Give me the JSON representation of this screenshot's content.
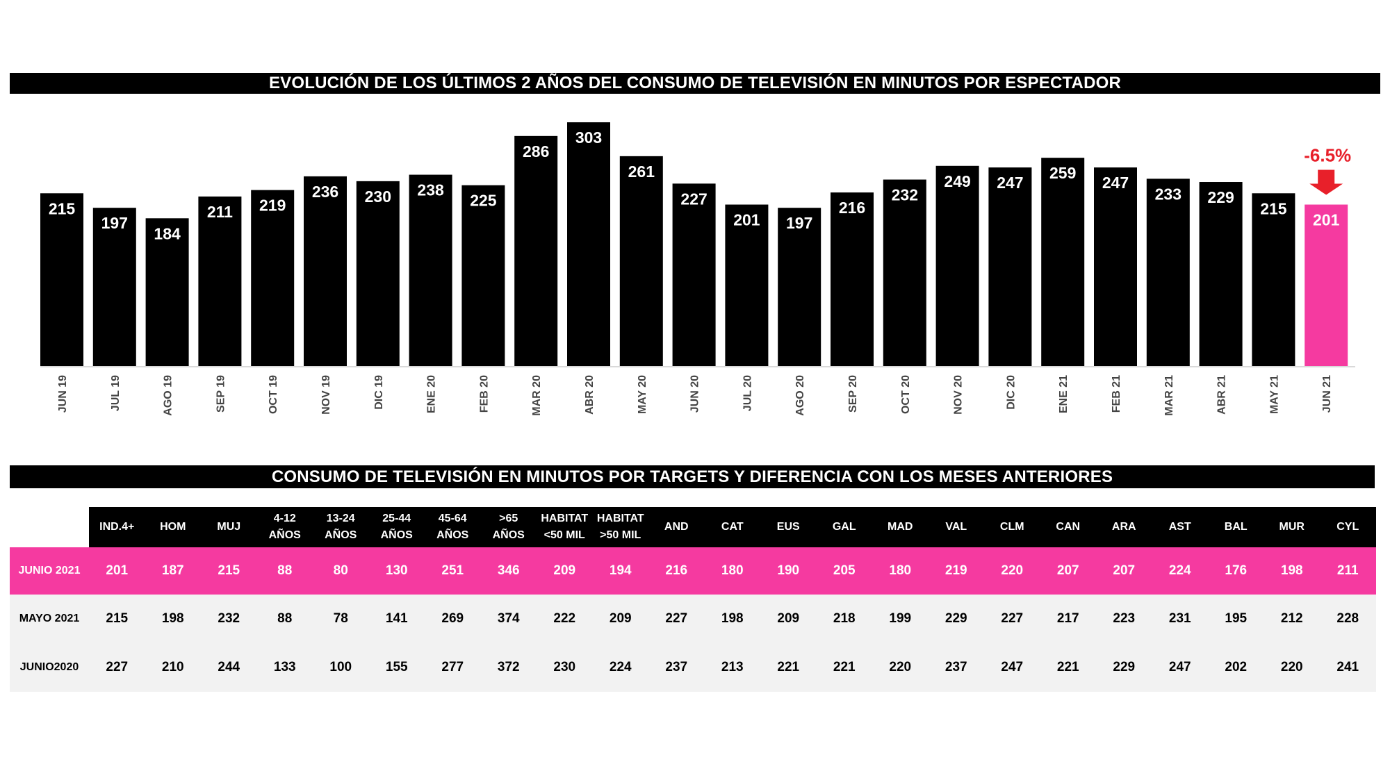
{
  "title": "EVOLUCIÓN DE LOS ÚLTIMOS 2 AÑOS DEL CONSUMO DE TELEVISIÓN EN MINUTOS POR ESPECTADOR",
  "colors": {
    "bar": "#000000",
    "highlight": "#f53aa0",
    "delta": "#e8202a",
    "table_header": "#000000",
    "table_current_row": "#f53aa0"
  },
  "chart_data": {
    "type": "bar",
    "title": "EVOLUCIÓN DE LOS ÚLTIMOS 2 AÑOS DEL CONSUMO DE TELEVISIÓN EN MINUTOS POR ESPECTADOR",
    "xlabel": "",
    "ylabel": "",
    "ylim": [
      0,
      310
    ],
    "grid": false,
    "categories": [
      "JUN 19",
      "JUL 19",
      "AGO 19",
      "SEP 19",
      "OCT 19",
      "NOV 19",
      "DIC 19",
      "ENE 20",
      "FEB 20",
      "MAR 20",
      "ABR 20",
      "MAY 20",
      "JUN 20",
      "JUL 20",
      "AGO 20",
      "SEP 20",
      "OCT 20",
      "NOV 20",
      "DIC 20",
      "ENE 21",
      "FEB 21",
      "MAR 21",
      "ABR 21",
      "MAY 21",
      "JUN 21"
    ],
    "values": [
      215,
      197,
      184,
      211,
      219,
      236,
      230,
      238,
      225,
      286,
      303,
      261,
      227,
      201,
      197,
      216,
      232,
      249,
      247,
      259,
      247,
      233,
      229,
      215,
      201
    ],
    "highlight_index": 24,
    "annotation": {
      "text": "-6.5%",
      "target": "JUN 21",
      "arrow": "down-arrow-icon"
    }
  },
  "table": {
    "title": "CONSUMO DE TELEVISIÓN EN MINUTOS POR TARGETS Y DIFERENCIA CON LOS MESES ANTERIORES",
    "columns": [
      "IND.4+",
      "HOM",
      "MUJ",
      "4-12\nAÑOS",
      "13-24\nAÑOS",
      "25-44\nAÑOS",
      "45-64\nAÑOS",
      ">65\nAÑOS",
      "HABITAT\n<50 MIL",
      "HABITAT\n>50 MIL",
      "AND",
      "CAT",
      "EUS",
      "GAL",
      "MAD",
      "VAL",
      "CLM",
      "CAN",
      "ARA",
      "AST",
      "BAL",
      "MUR",
      "CYL"
    ],
    "rows": [
      {
        "label": "JUNIO 2021",
        "values": [
          201,
          187,
          215,
          88,
          80,
          130,
          251,
          346,
          209,
          194,
          216,
          180,
          190,
          205,
          180,
          219,
          220,
          207,
          207,
          224,
          176,
          198,
          211
        ]
      },
      {
        "label": "MAYO 2021",
        "values": [
          215,
          198,
          232,
          88,
          78,
          141,
          269,
          374,
          222,
          209,
          227,
          198,
          209,
          218,
          199,
          229,
          227,
          217,
          223,
          231,
          195,
          212,
          228
        ]
      },
      {
        "label": "JUNIO2020",
        "values": [
          227,
          210,
          244,
          133,
          100,
          155,
          277,
          372,
          230,
          224,
          237,
          213,
          221,
          221,
          220,
          237,
          247,
          221,
          229,
          247,
          202,
          220,
          241
        ]
      }
    ]
  }
}
